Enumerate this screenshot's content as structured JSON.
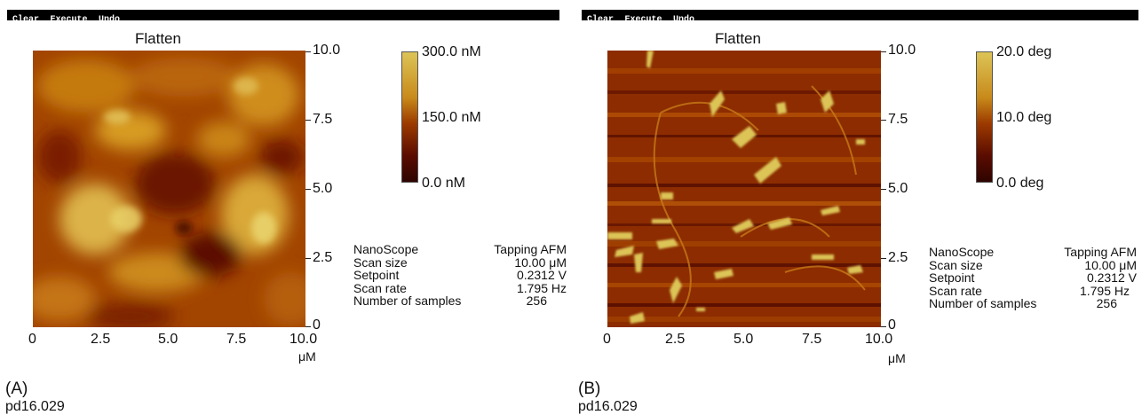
{
  "colors": {
    "afm_dark": "#3a0600",
    "afm_mid": "#9c3a00",
    "afm_light": "#dcc457",
    "menubar": "#000000"
  },
  "panels": [
    {
      "menu": [
        "Clear",
        "Execute",
        "Undo"
      ],
      "title": "Flatten",
      "y_ticks": [
        "10.0",
        "7.5",
        "5.0",
        "2.5",
        "0"
      ],
      "x_ticks": [
        "0",
        "2.5",
        "5.0",
        "7.5",
        "10.0"
      ],
      "x_unit": "μM",
      "colorbar": {
        "max": "300.0 nM",
        "mid": "150.0 nM",
        "min": "0.0 nM"
      },
      "info": [
        {
          "label": "NanoScope",
          "value": "Tapping AFM"
        },
        {
          "label": "Scan size",
          "value": "10.00 μM"
        },
        {
          "label": "Setpoint",
          "value": "0.2312 V"
        },
        {
          "label": "Scan rate",
          "value": "1.795 Hz"
        },
        {
          "label": "Number of samples",
          "value": "256"
        }
      ],
      "caption_letter": "(A)",
      "caption_text": "pd16.029"
    },
    {
      "menu": [
        "Clear",
        "Execute",
        "Undo"
      ],
      "title": "Flatten",
      "y_ticks": [
        "10.0",
        "7.5",
        "5.0",
        "2.5",
        "0"
      ],
      "x_ticks": [
        "0",
        "2.5",
        "5.0",
        "7.5",
        "10.0"
      ],
      "x_unit": "μM",
      "colorbar": {
        "max": "20.0 deg",
        "mid": "10.0 deg",
        "min": "0.0 deg"
      },
      "info": [
        {
          "label": "NanoScope",
          "value": "Tapping AFM"
        },
        {
          "label": "Scan size",
          "value": "10.00 μM"
        },
        {
          "label": "Setpoint",
          "value": "0.2312 V"
        },
        {
          "label": "Scan rate",
          "value": "1.795 Hz"
        },
        {
          "label": "Number of samples",
          "value": "256"
        }
      ],
      "caption_letter": "(B)",
      "caption_text": "pd16.029"
    }
  ]
}
